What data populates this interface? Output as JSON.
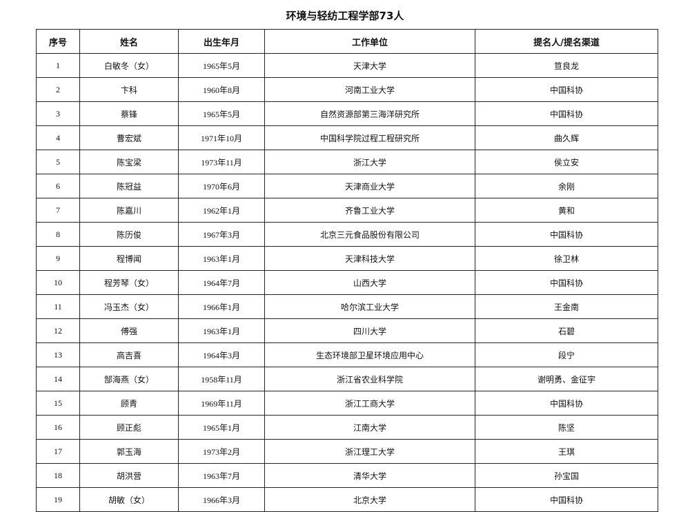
{
  "title": "环境与轻纺工程学部73人",
  "columns": [
    "序号",
    "姓名",
    "出生年月",
    "工作单位",
    "提名人/提名渠道"
  ],
  "rows": [
    [
      "1",
      "白敏冬（女）",
      "1965年5月",
      "天津大学",
      "笪良龙"
    ],
    [
      "2",
      "卞科",
      "1960年8月",
      "河南工业大学",
      "中国科协"
    ],
    [
      "3",
      "蔡锋",
      "1965年5月",
      "自然资源部第三海洋研究所",
      "中国科协"
    ],
    [
      "4",
      "曹宏斌",
      "1971年10月",
      "中国科学院过程工程研究所",
      "曲久辉"
    ],
    [
      "5",
      "陈宝梁",
      "1973年11月",
      "浙江大学",
      "侯立安"
    ],
    [
      "6",
      "陈冠益",
      "1970年6月",
      "天津商业大学",
      "余刚"
    ],
    [
      "7",
      "陈嘉川",
      "1962年1月",
      "齐鲁工业大学",
      "黄和"
    ],
    [
      "8",
      "陈历俊",
      "1967年3月",
      "北京三元食品股份有限公司",
      "中国科协"
    ],
    [
      "9",
      "程博闻",
      "1963年1月",
      "天津科技大学",
      "徐卫林"
    ],
    [
      "10",
      "程芳琴（女）",
      "1964年7月",
      "山西大学",
      "中国科协"
    ],
    [
      "11",
      "冯玉杰（女）",
      "1966年1月",
      "哈尔滨工业大学",
      "王金南"
    ],
    [
      "12",
      "傅强",
      "1963年1月",
      "四川大学",
      "石碧"
    ],
    [
      "13",
      "高吉喜",
      "1964年3月",
      "生态环境部卫星环境应用中心",
      "段宁"
    ],
    [
      "14",
      "郜海燕（女）",
      "1958年11月",
      "浙江省农业科学院",
      "谢明勇、金征宇"
    ],
    [
      "15",
      "顾青",
      "1969年11月",
      "浙江工商大学",
      "中国科协"
    ],
    [
      "16",
      "顾正彪",
      "1965年1月",
      "江南大学",
      "陈坚"
    ],
    [
      "17",
      "郭玉海",
      "1973年2月",
      "浙江理工大学",
      "王琪"
    ],
    [
      "18",
      "胡洪营",
      "1963年7月",
      "清华大学",
      "孙宝国"
    ],
    [
      "19",
      "胡敏（女）",
      "1966年3月",
      "北京大学",
      "中国科协"
    ]
  ]
}
